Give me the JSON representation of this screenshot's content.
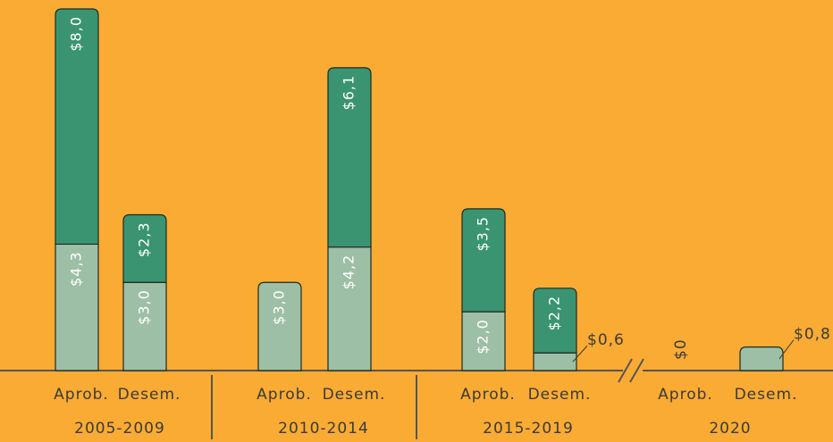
{
  "chart_data": {
    "type": "bar",
    "stacked": true,
    "groups": [
      "2005-2009",
      "2010-2014",
      "2015-2019",
      "2020"
    ],
    "categories": [
      "Aprob.",
      "Desem.",
      "Aprob.",
      "Desem.",
      "Aprob.",
      "Desem.",
      "Aprob.",
      "Desem."
    ],
    "series": [
      {
        "color": "#9dbfa6",
        "values": [
          4.3,
          3.0,
          3.0,
          4.2,
          2.0,
          0.6,
          0,
          0.8
        ],
        "value_labels": [
          "$4,3",
          "$3,0",
          "$3,0",
          "$4,2",
          "$2,0",
          "$0,6",
          "$0",
          "$0,8"
        ]
      },
      {
        "color": "#3a9472",
        "values": [
          8.0,
          2.3,
          null,
          6.1,
          3.5,
          2.2,
          null,
          null
        ],
        "value_labels": [
          "$8,0",
          "$2,3",
          null,
          "$6,1",
          "$3,5",
          "$2,2",
          null,
          null
        ]
      }
    ]
  }
}
